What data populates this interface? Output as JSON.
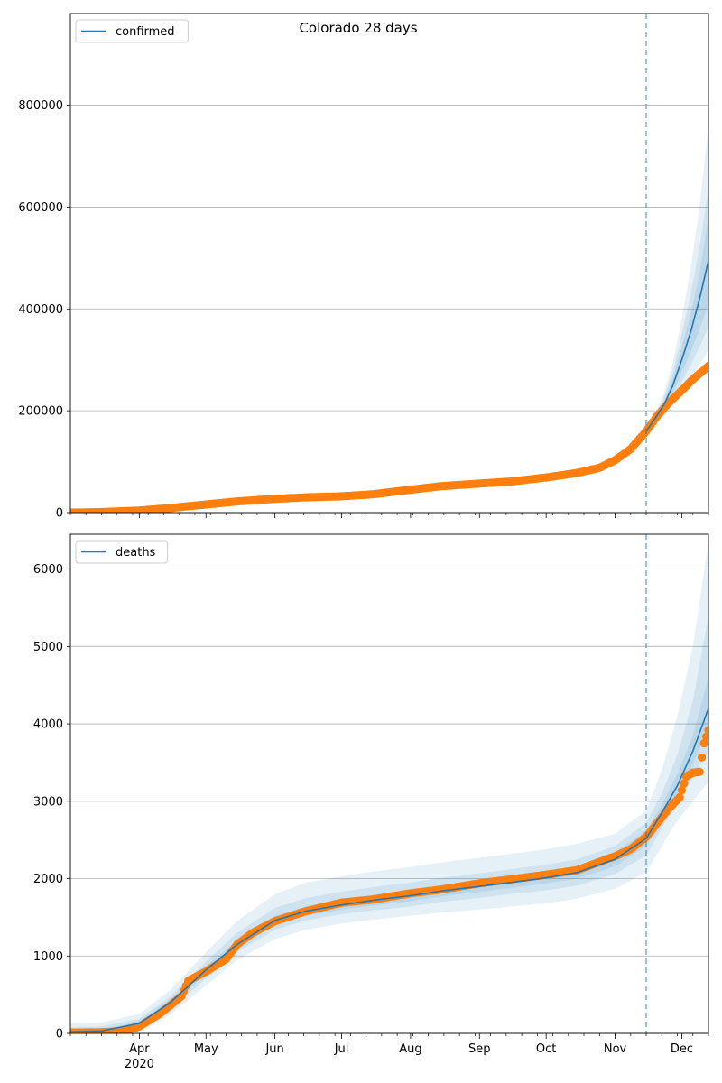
{
  "title": "Colorado 28 days",
  "colors": {
    "model_line": "#1f77b4",
    "band": "#1f77b4",
    "observed": "#ff7f0e",
    "forecast_marker": "#1f77b4",
    "grid": "#b0b0b0"
  },
  "chart_data": [
    {
      "type": "line",
      "name": "confirmed",
      "legend": {
        "label": "confirmed",
        "placement": "top-left"
      },
      "grid": "y-only",
      "x_range": [
        "2020-03-01",
        "2020-12-13"
      ],
      "ylim": [
        0,
        980000
      ],
      "y_ticks": [
        0,
        200000,
        400000,
        600000,
        800000
      ],
      "forecast_start": "2020-11-15",
      "model": {
        "x": [
          "2020-11-15",
          "2020-11-19",
          "2020-11-23",
          "2020-11-27",
          "2020-12-01",
          "2020-12-05",
          "2020-12-09",
          "2020-12-13"
        ],
        "y": [
          160000,
          185000,
          212000,
          250000,
          300000,
          355000,
          420000,
          495000
        ],
        "bands": [
          {
            "low": [
              158000,
              178000,
              195000,
              215000,
              240000,
              265000,
              290000,
              318000
            ],
            "high": [
              162000,
              195000,
              235000,
              295000,
              380000,
              480000,
              600000,
              760000
            ]
          },
          {
            "low": [
              159000,
              181000,
              201000,
              226000,
              258000,
              290000,
              325000,
              365000
            ],
            "high": [
              161000,
              191000,
              227000,
              278000,
              350000,
              430000,
              520000,
              640000
            ]
          },
          {
            "low": [
              159500,
              183000,
              206000,
              236000,
              275000,
              315000,
              360000,
              410000
            ],
            "high": [
              160500,
              188000,
              219000,
              264000,
              325000,
              390000,
              470000,
              580000
            ]
          }
        ]
      },
      "observed": {
        "x": [
          "2020-03-01",
          "2020-03-15",
          "2020-04-01",
          "2020-04-15",
          "2020-05-01",
          "2020-05-15",
          "2020-06-01",
          "2020-06-15",
          "2020-07-01",
          "2020-07-15",
          "2020-08-01",
          "2020-08-15",
          "2020-09-01",
          "2020-09-15",
          "2020-10-01",
          "2020-10-15",
          "2020-10-25",
          "2020-11-01",
          "2020-11-08",
          "2020-11-15",
          "2020-11-20",
          "2020-11-25",
          "2020-12-01",
          "2020-12-06",
          "2020-12-13"
        ],
        "y": [
          0,
          1000,
          4000,
          9000,
          16000,
          22000,
          27000,
          30000,
          32000,
          36000,
          45000,
          52000,
          57000,
          61000,
          69000,
          78000,
          88000,
          103000,
          125000,
          160000,
          190000,
          215000,
          240000,
          262000,
          288000
        ]
      }
    },
    {
      "type": "line",
      "name": "deaths",
      "legend": {
        "label": "deaths",
        "placement": "top-left"
      },
      "grid": "y-only",
      "x_range": [
        "2020-03-01",
        "2020-12-13"
      ],
      "ylim": [
        0,
        6450
      ],
      "y_ticks": [
        0,
        1000,
        2000,
        3000,
        4000,
        5000,
        6000
      ],
      "forecast_start": "2020-11-15",
      "x_ticks": [
        {
          "date": "2020-04-01",
          "label": "Apr",
          "year": "2020"
        },
        {
          "date": "2020-05-01",
          "label": "May"
        },
        {
          "date": "2020-06-01",
          "label": "Jun"
        },
        {
          "date": "2020-07-01",
          "label": "Jul"
        },
        {
          "date": "2020-08-01",
          "label": "Aug"
        },
        {
          "date": "2020-09-01",
          "label": "Sep"
        },
        {
          "date": "2020-10-01",
          "label": "Oct"
        },
        {
          "date": "2020-11-01",
          "label": "Nov"
        },
        {
          "date": "2020-12-01",
          "label": "Dec"
        }
      ],
      "model": {
        "x": [
          "2020-03-01",
          "2020-03-15",
          "2020-04-01",
          "2020-04-15",
          "2020-05-01",
          "2020-05-15",
          "2020-06-01",
          "2020-06-15",
          "2020-07-01",
          "2020-07-15",
          "2020-08-01",
          "2020-08-15",
          "2020-09-01",
          "2020-09-15",
          "2020-10-01",
          "2020-10-15",
          "2020-11-01",
          "2020-11-15",
          "2020-11-22",
          "2020-11-29",
          "2020-12-06",
          "2020-12-13"
        ],
        "y": [
          20,
          30,
          130,
          400,
          820,
          1150,
          1460,
          1580,
          1660,
          1720,
          1780,
          1840,
          1900,
          1950,
          2010,
          2080,
          2250,
          2520,
          2850,
          3200,
          3650,
          4200
        ],
        "bands": [
          {
            "low": [
              0,
              0,
              20,
              240,
              620,
              950,
              1220,
              1340,
              1420,
              1470,
              1520,
              1560,
              1600,
              1640,
              1680,
              1740,
              1870,
              2080,
              2420,
              2750,
              3000,
              3250
            ],
            "high": [
              130,
              140,
              250,
              560,
              1050,
              1450,
              1800,
              1950,
              2030,
              2090,
              2150,
              2210,
              2270,
              2320,
              2380,
              2450,
              2580,
              2880,
              3400,
              4100,
              5000,
              6350
            ]
          },
          {
            "low": [
              0,
              5,
              60,
              310,
              710,
              1050,
              1340,
              1460,
              1540,
              1590,
              1640,
              1700,
              1750,
              1800,
              1850,
              1910,
              2060,
              2300,
              2650,
              3000,
              3300,
              3650
            ],
            "high": [
              80,
              90,
              190,
              480,
              930,
              1300,
              1620,
              1750,
              1830,
              1890,
              1950,
              2010,
              2070,
              2120,
              2180,
              2250,
              2420,
              2720,
              3100,
              3600,
              4300,
              5400
            ]
          },
          {
            "low": [
              5,
              15,
              100,
              360,
              770,
              1100,
              1400,
              1520,
              1600,
              1650,
              1710,
              1770,
              1830,
              1880,
              1940,
              2000,
              2160,
              2420,
              2760,
              3100,
              3480,
              3950
            ],
            "high": [
              40,
              50,
              160,
              440,
              870,
              1200,
              1520,
              1640,
              1720,
              1790,
              1850,
              1910,
              1970,
              2020,
              2080,
              2160,
              2340,
              2620,
              2950,
              3350,
              3850,
              4600
            ]
          }
        ]
      },
      "observed": {
        "x": [
          "2020-03-01",
          "2020-03-15",
          "2020-03-25",
          "2020-04-01",
          "2020-04-10",
          "2020-04-20",
          "2020-04-23",
          "2020-05-01",
          "2020-05-10",
          "2020-05-15",
          "2020-05-22",
          "2020-06-01",
          "2020-06-15",
          "2020-07-01",
          "2020-07-15",
          "2020-08-01",
          "2020-08-15",
          "2020-09-01",
          "2020-09-15",
          "2020-10-01",
          "2020-10-15",
          "2020-11-01",
          "2020-11-08",
          "2020-11-15",
          "2020-11-20",
          "2020-11-25",
          "2020-11-30",
          "2020-12-03",
          "2020-12-06",
          "2020-12-09",
          "2020-12-11",
          "2020-12-13"
        ],
        "y": [
          10,
          15,
          30,
          90,
          250,
          480,
          680,
          800,
          960,
          1150,
          1300,
          1450,
          1580,
          1690,
          1730,
          1810,
          1860,
          1940,
          1990,
          2050,
          2110,
          2290,
          2380,
          2540,
          2720,
          2900,
          3050,
          3320,
          3370,
          3380,
          3750,
          3920
        ]
      }
    }
  ]
}
